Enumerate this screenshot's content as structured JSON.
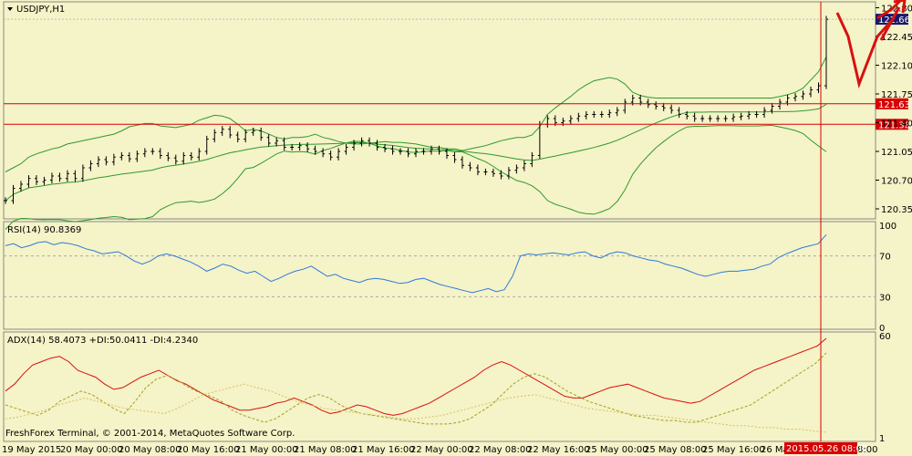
{
  "chart_data": [
    {
      "type": "candlestick",
      "panel": "price",
      "title": "USDJPY,H1",
      "ylim": [
        120.25,
        122.85
      ],
      "yticks": [
        "122.80",
        "122.45",
        "122.10",
        "121.75",
        "121.40",
        "121.05",
        "120.70",
        "120.35"
      ],
      "last_price": "122.66",
      "horizontal_levels": [
        {
          "label": "121.63",
          "value": 121.63
        },
        {
          "label": "121.38",
          "value": 121.38
        }
      ],
      "series": [
        {
          "name": "close",
          "values": [
            120.45,
            120.6,
            120.65,
            120.72,
            120.68,
            120.7,
            120.75,
            120.72,
            120.78,
            120.72,
            120.85,
            120.9,
            120.95,
            120.92,
            120.98,
            121.0,
            120.96,
            121.02,
            121.05,
            121.05,
            121.0,
            120.97,
            120.93,
            121.0,
            120.98,
            121.05,
            121.2,
            121.28,
            121.32,
            121.25,
            121.2,
            121.28,
            121.3,
            121.22,
            121.15,
            121.18,
            121.1,
            121.1,
            121.12,
            121.08,
            121.05,
            121.02,
            120.98,
            121.05,
            121.1,
            121.15,
            121.18,
            121.15,
            121.1,
            121.08,
            121.05,
            121.05,
            121.02,
            121.05,
            121.05,
            121.08,
            121.05,
            121.0,
            120.95,
            120.88,
            120.85,
            120.8,
            120.8,
            120.78,
            120.75,
            120.82,
            120.85,
            120.9,
            121.0,
            121.38,
            121.45,
            121.4,
            121.42,
            121.45,
            121.48,
            121.5,
            121.5,
            121.5,
            121.52,
            121.55,
            121.65,
            121.7,
            121.65,
            121.62,
            121.6,
            121.58,
            121.55,
            121.5,
            121.48,
            121.45,
            121.45,
            121.45,
            121.45,
            121.45,
            121.47,
            121.48,
            121.5,
            121.5,
            121.55,
            121.6,
            121.65,
            121.7,
            121.72,
            121.75,
            121.8,
            121.85,
            122.66
          ]
        },
        {
          "name": "Bollinger upper",
          "values": [
            120.8,
            120.85,
            120.9,
            120.98,
            121.02,
            121.05,
            121.08,
            121.1,
            121.14,
            121.16,
            121.18,
            121.2,
            121.22,
            121.24,
            121.26,
            121.3,
            121.35,
            121.37,
            121.39,
            121.39,
            121.36,
            121.35,
            121.34,
            121.36,
            121.38,
            121.43,
            121.46,
            121.49,
            121.48,
            121.45,
            121.38,
            121.3,
            121.32,
            121.3,
            121.26,
            121.22,
            121.2,
            121.22,
            121.22,
            121.23,
            121.26,
            121.22,
            121.2,
            121.17,
            121.15,
            121.14,
            121.14,
            121.15,
            121.16,
            121.17,
            121.16,
            121.16,
            121.15,
            121.14,
            121.12,
            121.1,
            121.1,
            121.08,
            121.08,
            121.06,
            121.08,
            121.1,
            121.12,
            121.15,
            121.18,
            121.2,
            121.22,
            121.22,
            121.25,
            121.35,
            121.5,
            121.58,
            121.65,
            121.72,
            121.8,
            121.86,
            121.91,
            121.93,
            121.95,
            121.93,
            121.87,
            121.77,
            121.73,
            121.71,
            121.7,
            121.7,
            121.7,
            121.7,
            121.7,
            121.7,
            121.7,
            121.7,
            121.7,
            121.7,
            121.7,
            121.7,
            121.7,
            121.7,
            121.7,
            121.7,
            121.72,
            121.74,
            121.77,
            121.82,
            121.92,
            122.02,
            122.2
          ]
        }
      ],
      "indicators": [
        "Bollinger Bands (upper, middle, lower)"
      ]
    },
    {
      "type": "line",
      "panel": "rsi",
      "title": "RSI(14) 90.8369",
      "ylim": [
        0,
        100
      ],
      "yticks": [
        "100",
        "70",
        "30",
        "0"
      ],
      "series": [
        {
          "name": "RSI(14)",
          "values": [
            80,
            82,
            78,
            80,
            83,
            84,
            81,
            83,
            82,
            80,
            77,
            75,
            72,
            73,
            74,
            70,
            65,
            62,
            65,
            70,
            72,
            70,
            67,
            64,
            60,
            55,
            58,
            62,
            60,
            56,
            53,
            55,
            50,
            45,
            48,
            52,
            55,
            57,
            60,
            55,
            50,
            52,
            48,
            46,
            44,
            47,
            48,
            47,
            45,
            43,
            44,
            47,
            48,
            45,
            42,
            40,
            38,
            36,
            34,
            36,
            38,
            35,
            37,
            50,
            70,
            72,
            71,
            72,
            73,
            72,
            71,
            73,
            74,
            70,
            68,
            72,
            74,
            73,
            70,
            68,
            66,
            65,
            62,
            60,
            58,
            55,
            52,
            50,
            52,
            54,
            55,
            55,
            56,
            57,
            60,
            62,
            68,
            72,
            75,
            78,
            80,
            82,
            90.8
          ]
        }
      ]
    },
    {
      "type": "line",
      "panel": "adx",
      "title": "ADX(14) 58.4073 +DI:50.0411 -DI:4.2340",
      "ylim": [
        0,
        60
      ],
      "yticks": [
        "60",
        "1"
      ],
      "series": [
        {
          "name": "ADX(14)",
          "values": [
            28,
            32,
            38,
            43,
            45,
            47,
            48,
            45,
            40,
            38,
            36,
            32,
            29,
            30,
            33,
            36,
            38,
            40,
            37,
            34,
            32,
            29,
            26,
            23,
            21,
            19,
            17,
            17,
            18,
            19,
            21,
            22,
            24,
            22,
            20,
            17,
            15,
            16,
            18,
            20,
            19,
            17,
            15,
            14,
            15,
            17,
            19,
            21,
            24,
            27,
            30,
            33,
            36,
            40,
            43,
            45,
            43,
            40,
            37,
            34,
            31,
            28,
            25,
            24,
            24,
            26,
            28,
            30,
            31,
            32,
            30,
            28,
            26,
            24,
            23,
            22,
            21,
            22,
            25,
            28,
            31,
            34,
            37,
            40,
            42,
            44,
            46,
            48,
            50,
            52,
            54,
            58.4
          ]
        },
        {
          "name": "+DI",
          "values": [
            20,
            18,
            16,
            14,
            17,
            22,
            25,
            28,
            26,
            22,
            18,
            15,
            22,
            30,
            35,
            37,
            34,
            30,
            27,
            25,
            22,
            17,
            14,
            12,
            10,
            12,
            16,
            20,
            24,
            26,
            24,
            20,
            17,
            15,
            14,
            13,
            12,
            11,
            10,
            9,
            9,
            9,
            10,
            12,
            16,
            20,
            26,
            32,
            36,
            38,
            36,
            32,
            28,
            25,
            22,
            20,
            18,
            16,
            14,
            13,
            12,
            11,
            11,
            10,
            10,
            12,
            14,
            16,
            18,
            20,
            24,
            28,
            32,
            36,
            40,
            44,
            50.0
          ]
        },
        {
          "name": "-DI",
          "values": [
            12,
            13,
            15,
            17,
            20,
            22,
            24,
            22,
            20,
            18,
            17,
            16,
            15,
            18,
            22,
            26,
            28,
            30,
            32,
            30,
            28,
            25,
            22,
            20,
            18,
            17,
            16,
            15,
            14,
            13,
            12,
            12,
            13,
            14,
            16,
            18,
            20,
            22,
            24,
            25,
            26,
            24,
            22,
            20,
            18,
            17,
            16,
            15,
            14,
            14,
            13,
            12,
            11,
            10,
            9,
            8,
            8,
            7,
            7,
            6,
            6,
            5,
            4.2
          ]
        }
      ]
    }
  ],
  "x_labels": [
    "19 May 2015",
    "20 May 00:00",
    "20 May 08:00",
    "20 May 16:00",
    "21 May 00:00",
    "21 May 08:00",
    "21 May 16:00",
    "22 May 00:00",
    "22 May 08:00",
    "22 May 16:00",
    "25 May 00:00",
    "25 May 08:00",
    "25 May 16:00",
    "26 Ma",
    "8:00"
  ],
  "cursor_time": "2015.05.26 08:00",
  "footer": "FreshForex Terminal, © 2001-2014, MetaQuotes Software Corp.",
  "colors": {
    "background": "#f5f3c8",
    "candle": "#000000",
    "bollinger": "#2e9a2e",
    "level_line": "#d80000",
    "price_tag": "#d80000",
    "rsi": "#2e7bd8",
    "adx": "#d81010",
    "plus_di": "#a0a020",
    "minus_di": "#d8c060",
    "annotation": "#d81010"
  },
  "annotation": "red-arrow-and-v-stroke"
}
